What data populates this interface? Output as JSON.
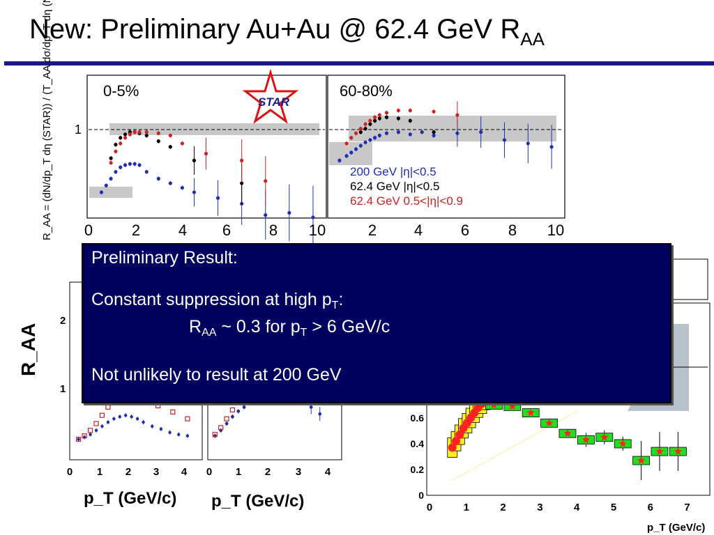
{
  "slide": {
    "title_main": "New: Preliminary Au+Au @ 62.4 GeV  R",
    "title_sub": "AA"
  },
  "popup": {
    "line1": "Preliminary Result:",
    "line2_main": "Constant suppression at high p",
    "line2_sub": "T",
    "line2_end": ":",
    "line3_a": "R",
    "line3_a_sub": "AA",
    "line3_b": " ~ 0.3 for p",
    "line3_b_sub": "T",
    "line3_c": " > 6 GeV/c",
    "line4": "Not unlikely to result at 200 GeV"
  },
  "colors": {
    "title_rule": "#1a1a8c",
    "popup_bg": "#00005e",
    "series_200": "#1f2fb0",
    "series_62_black": "#000000",
    "series_62_red": "#cc2222",
    "band_gray": "#c8c8c8",
    "green_box": "#22dd22",
    "yellow_box": "#ffee22",
    "red_marker": "#ff2222",
    "star_logo": "#dd1111"
  },
  "chart_data": [
    {
      "type": "scatter",
      "panel": "top-left",
      "panel_label": "0-5%",
      "ylabel": "R_AA = (dN/dp_T dη (STAR)) / (T_AA dσ/dp_T dη (NN))",
      "x_ticks": [
        "0",
        "2",
        "4",
        "6",
        "8",
        "10"
      ],
      "y_ticks": [
        "1"
      ],
      "xlim": [
        0,
        10
      ],
      "ylim": [
        0,
        1.6
      ],
      "reference_line": 1,
      "logo": "STAR",
      "series": [
        {
          "color": "blue",
          "x": [
            0.6,
            0.8,
            1.0,
            1.2,
            1.4,
            1.6,
            1.8,
            2.0,
            2.2,
            2.5,
            3.0,
            3.5,
            4.0,
            4.5,
            5.5,
            6.5,
            7.5,
            8.5,
            9.5
          ],
          "y": [
            0.52,
            0.58,
            0.64,
            0.7,
            0.74,
            0.76,
            0.77,
            0.77,
            0.76,
            0.7,
            0.64,
            0.6,
            0.56,
            0.52,
            0.47,
            0.42,
            0.32,
            0.34,
            0.3
          ]
        },
        {
          "color": "black",
          "x": [
            1.0,
            1.2,
            1.4,
            1.6,
            1.8,
            2.0,
            2.2,
            2.5,
            3.0,
            3.5,
            4.5,
            6.5
          ],
          "y": [
            0.82,
            0.94,
            1.0,
            1.03,
            1.05,
            1.05,
            1.04,
            1.02,
            0.97,
            0.92,
            0.8,
            0.6
          ]
        },
        {
          "color": "red",
          "x": [
            1.0,
            1.2,
            1.4,
            1.6,
            1.8,
            2.0,
            2.2,
            2.5,
            3.0,
            3.5,
            4.0,
            5.0,
            6.5,
            7.5
          ],
          "y": [
            0.78,
            0.88,
            0.95,
            1.0,
            1.03,
            1.05,
            1.05,
            1.05,
            1.04,
            1.02,
            0.95,
            0.86,
            0.8,
            0.62
          ]
        }
      ]
    },
    {
      "type": "scatter",
      "panel": "top-right",
      "panel_label": "60-80%",
      "x_ticks": [
        "2",
        "4",
        "6",
        "8",
        "10"
      ],
      "xlim": [
        0,
        10
      ],
      "ylim": [
        0,
        1.6
      ],
      "reference_line": 1,
      "legend": [
        "200 GeV |η|<0.5",
        "62.4 GeV |η|<0.5",
        "62.4 GeV 0.5<|η|<0.9"
      ],
      "series": [
        {
          "name": "200 GeV |η|<0.5",
          "color": "blue",
          "x": [
            0.5,
            0.8,
            1.0,
            1.2,
            1.4,
            1.6,
            1.8,
            2.0,
            2.2,
            2.5,
            3.0,
            3.5,
            4.0,
            4.5,
            5.5,
            6.5,
            7.5,
            8.5,
            9.5
          ],
          "y": [
            0.8,
            0.84,
            0.87,
            0.9,
            0.93,
            0.96,
            0.98,
            1.0,
            1.02,
            1.04,
            1.05,
            1.03,
            1.05,
            1.02,
            1.04,
            1.05,
            0.98,
            0.95,
            0.92
          ]
        },
        {
          "name": "62.4 GeV |η|<0.5",
          "color": "black",
          "x": [
            1.4,
            1.6,
            1.8,
            2.0,
            2.2,
            2.5,
            3.0,
            3.5,
            4.5
          ],
          "y": [
            1.05,
            1.08,
            1.12,
            1.15,
            1.17,
            1.18,
            1.17,
            1.15,
            1.05
          ]
        },
        {
          "name": "62.4 GeV 0.5<|η|<0.9",
          "color": "red",
          "x": [
            0.8,
            1.0,
            1.2,
            1.4,
            1.6,
            1.8,
            2.0,
            2.2,
            2.5,
            3.0,
            3.5,
            4.5,
            5.5
          ],
          "y": [
            0.95,
            1.0,
            1.04,
            1.08,
            1.12,
            1.15,
            1.18,
            1.2,
            1.22,
            1.24,
            1.24,
            1.23,
            1.2
          ]
        }
      ]
    },
    {
      "type": "scatter",
      "panel": "bottom-left",
      "ylabel": "R_AA",
      "xlabel": "p_T (GeV/c)",
      "x_ticks": [
        "0",
        "1",
        "2",
        "3",
        "4"
      ],
      "y_ticks": [
        "1",
        "2"
      ],
      "xlim": [
        0,
        4.5
      ],
      "ylim": [
        0,
        2.5
      ],
      "series": [
        {
          "color": "blue",
          "x": [
            0.3,
            0.5,
            0.7,
            0.9,
            1.1,
            1.3,
            1.5,
            1.7,
            1.9,
            2.1,
            2.3,
            2.5,
            2.8,
            3.1,
            3.4,
            3.7,
            4.0
          ],
          "y": [
            0.25,
            0.28,
            0.32,
            0.38,
            0.44,
            0.5,
            0.55,
            0.58,
            0.6,
            0.58,
            0.55,
            0.5,
            0.44,
            0.4,
            0.35,
            0.32,
            0.3
          ]
        },
        {
          "color": "red",
          "x": [
            0.3,
            0.5,
            0.7,
            0.9,
            1.1,
            1.3,
            1.5,
            1.7,
            1.9,
            2.1,
            2.3,
            2.6,
            3.0,
            3.5,
            4.0
          ],
          "y": [
            0.25,
            0.3,
            0.38,
            0.48,
            0.6,
            0.72,
            0.82,
            0.88,
            0.9,
            0.88,
            0.85,
            0.8,
            0.74,
            0.65,
            0.55
          ]
        }
      ]
    },
    {
      "type": "scatter",
      "panel": "bottom-middle",
      "xlabel": "p_T (GeV/c)",
      "x_ticks": [
        "0",
        "1",
        "2",
        "3",
        "4"
      ],
      "xlim": [
        0,
        4.5
      ],
      "ylim": [
        0,
        2.5
      ],
      "series": [
        {
          "color": "blue",
          "x": [
            0.2,
            0.4,
            0.6,
            0.8,
            1.0,
            1.2,
            1.4,
            3.5,
            3.8
          ],
          "y": [
            0.3,
            0.38,
            0.48,
            0.58,
            0.66,
            0.72,
            0.78,
            0.72,
            0.62
          ]
        },
        {
          "color": "red",
          "x": [
            0.2,
            0.4,
            0.6,
            0.8,
            1.0,
            1.2,
            1.4
          ],
          "y": [
            0.32,
            0.42,
            0.55,
            0.68,
            0.8,
            0.88,
            0.94
          ]
        }
      ]
    },
    {
      "type": "scatter",
      "panel": "bottom-right",
      "xlabel": "p_T (GeV/c)",
      "x_ticks": [
        "0",
        "1",
        "2",
        "3",
        "4",
        "5",
        "6",
        "7"
      ],
      "y_ticks": [
        "0",
        "0.2",
        "0.4",
        "0.6"
      ],
      "xlim": [
        0,
        7.5
      ],
      "ylim": [
        0,
        0.8
      ],
      "series": [
        {
          "color": "red-circles",
          "x": [
            0.62,
            0.72,
            0.82,
            0.92,
            1.02,
            1.12,
            1.22,
            1.32,
            1.42,
            1.52
          ],
          "y": [
            0.37,
            0.42,
            0.47,
            0.52,
            0.56,
            0.6,
            0.64,
            0.68,
            0.71,
            0.74
          ]
        },
        {
          "color": "red-stars",
          "x": [
            1.75,
            2.25,
            2.75,
            3.25,
            3.75,
            4.25,
            4.75,
            5.25,
            5.75,
            6.25,
            6.75
          ],
          "y": [
            0.7,
            0.69,
            0.64,
            0.56,
            0.48,
            0.43,
            0.45,
            0.4,
            0.27,
            0.34,
            0.34
          ]
        }
      ]
    }
  ]
}
